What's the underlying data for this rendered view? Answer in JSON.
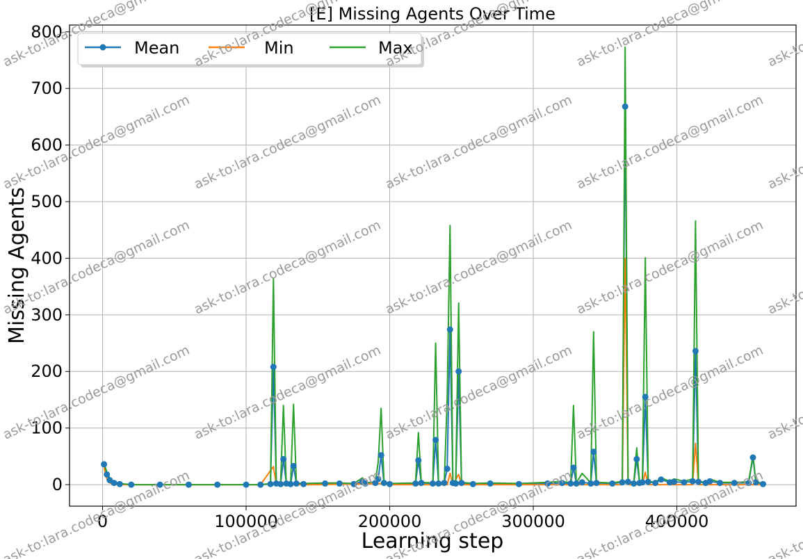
{
  "chart_data": {
    "type": "line",
    "title": "[E] Missing Agents Over Time",
    "xlabel": "Learning step",
    "ylabel": "Missing Agents",
    "xlim": [
      -23000,
      483000
    ],
    "ylim": [
      -38,
      812
    ],
    "xticks": [
      0,
      100000,
      200000,
      300000,
      400000
    ],
    "xtick_labels": [
      "0",
      "100000",
      "200000",
      "300000",
      "400000"
    ],
    "yticks": [
      0,
      100,
      200,
      300,
      400,
      500,
      600,
      700,
      800
    ],
    "ytick_labels": [
      "0",
      "100",
      "200",
      "300",
      "400",
      "500",
      "600",
      "700",
      "800"
    ],
    "grid": true,
    "legend_placement": "top-left",
    "legend_ncol": 3,
    "series": [
      {
        "name": "Mean",
        "color": "#1f77b4",
        "marker": "circle",
        "points": [
          [
            1000,
            36
          ],
          [
            3000,
            18
          ],
          [
            5000,
            8
          ],
          [
            8000,
            3
          ],
          [
            12000,
            1
          ],
          [
            20000,
            0
          ],
          [
            40000,
            0
          ],
          [
            60000,
            0
          ],
          [
            80000,
            0
          ],
          [
            100000,
            0
          ],
          [
            110000,
            0
          ],
          [
            117000,
            1
          ],
          [
            119000,
            208
          ],
          [
            121000,
            2
          ],
          [
            124000,
            1
          ],
          [
            126000,
            45
          ],
          [
            128000,
            2
          ],
          [
            131000,
            1
          ],
          [
            133000,
            33
          ],
          [
            135000,
            2
          ],
          [
            140000,
            1
          ],
          [
            155000,
            2
          ],
          [
            165000,
            2
          ],
          [
            175000,
            1
          ],
          [
            181000,
            5
          ],
          [
            183000,
            2
          ],
          [
            190000,
            3
          ],
          [
            192000,
            10
          ],
          [
            194000,
            52
          ],
          [
            196000,
            3
          ],
          [
            200000,
            1
          ],
          [
            218000,
            2
          ],
          [
            220000,
            43
          ],
          [
            222000,
            3
          ],
          [
            230000,
            2
          ],
          [
            232000,
            79
          ],
          [
            234000,
            2
          ],
          [
            238000,
            3
          ],
          [
            240000,
            28
          ],
          [
            242000,
            274
          ],
          [
            244000,
            3
          ],
          [
            246000,
            2
          ],
          [
            248000,
            200
          ],
          [
            250000,
            3
          ],
          [
            258000,
            1
          ],
          [
            270000,
            2
          ],
          [
            290000,
            1
          ],
          [
            310000,
            2
          ],
          [
            320000,
            3
          ],
          [
            326000,
            2
          ],
          [
            328000,
            30
          ],
          [
            330000,
            2
          ],
          [
            334000,
            4
          ],
          [
            340000,
            2
          ],
          [
            342000,
            58
          ],
          [
            344000,
            3
          ],
          [
            355000,
            2
          ],
          [
            362000,
            4
          ],
          [
            364000,
            668
          ],
          [
            366000,
            5
          ],
          [
            370000,
            2
          ],
          [
            372000,
            45
          ],
          [
            374000,
            3
          ],
          [
            376000,
            4
          ],
          [
            378000,
            155
          ],
          [
            380000,
            5
          ],
          [
            385000,
            3
          ],
          [
            389000,
            9
          ],
          [
            395000,
            4
          ],
          [
            398000,
            5
          ],
          [
            405000,
            4
          ],
          [
            411000,
            6
          ],
          [
            413000,
            236
          ],
          [
            415000,
            5
          ],
          [
            420000,
            3
          ],
          [
            423000,
            6
          ],
          [
            430000,
            3
          ],
          [
            440000,
            3
          ],
          [
            450000,
            3
          ],
          [
            453000,
            48
          ],
          [
            455000,
            4
          ],
          [
            460000,
            1
          ]
        ]
      },
      {
        "name": "Min",
        "color": "#ff7f0e",
        "marker": "none",
        "points": [
          [
            1000,
            30
          ],
          [
            3000,
            10
          ],
          [
            5000,
            3
          ],
          [
            10000,
            0
          ],
          [
            40000,
            0
          ],
          [
            80000,
            0
          ],
          [
            110000,
            0
          ],
          [
            119000,
            32
          ],
          [
            121000,
            0
          ],
          [
            126000,
            0
          ],
          [
            133000,
            0
          ],
          [
            150000,
            0
          ],
          [
            194000,
            2
          ],
          [
            200000,
            0
          ],
          [
            220000,
            0
          ],
          [
            232000,
            0
          ],
          [
            240000,
            0
          ],
          [
            242000,
            20
          ],
          [
            244000,
            0
          ],
          [
            248000,
            18
          ],
          [
            250000,
            0
          ],
          [
            300000,
            0
          ],
          [
            342000,
            0
          ],
          [
            362000,
            0
          ],
          [
            364000,
            400
          ],
          [
            366000,
            0
          ],
          [
            376000,
            0
          ],
          [
            378000,
            22
          ],
          [
            380000,
            0
          ],
          [
            411000,
            0
          ],
          [
            413000,
            73
          ],
          [
            415000,
            0
          ],
          [
            440000,
            0
          ],
          [
            453000,
            0
          ],
          [
            460000,
            0
          ]
        ]
      },
      {
        "name": "Max",
        "color": "#2ca02c",
        "marker": "none",
        "points": [
          [
            1000,
            38
          ],
          [
            3000,
            22
          ],
          [
            5000,
            12
          ],
          [
            8000,
            5
          ],
          [
            12000,
            2
          ],
          [
            20000,
            0
          ],
          [
            40000,
            0
          ],
          [
            60000,
            0
          ],
          [
            80000,
            0
          ],
          [
            100000,
            0
          ],
          [
            110000,
            0
          ],
          [
            117000,
            2
          ],
          [
            119000,
            365
          ],
          [
            121000,
            3
          ],
          [
            124000,
            2
          ],
          [
            126000,
            140
          ],
          [
            128000,
            2
          ],
          [
            131000,
            2
          ],
          [
            133000,
            142
          ],
          [
            135000,
            3
          ],
          [
            140000,
            2
          ],
          [
            155000,
            3
          ],
          [
            165000,
            3
          ],
          [
            175000,
            2
          ],
          [
            181000,
            12
          ],
          [
            183000,
            3
          ],
          [
            190000,
            5
          ],
          [
            192000,
            40
          ],
          [
            194000,
            135
          ],
          [
            196000,
            5
          ],
          [
            200000,
            2
          ],
          [
            218000,
            3
          ],
          [
            220000,
            92
          ],
          [
            222000,
            4
          ],
          [
            230000,
            3
          ],
          [
            232000,
            250
          ],
          [
            234000,
            3
          ],
          [
            238000,
            4
          ],
          [
            240000,
            152
          ],
          [
            242000,
            458
          ],
          [
            244000,
            4
          ],
          [
            246000,
            3
          ],
          [
            248000,
            321
          ],
          [
            250000,
            4
          ],
          [
            258000,
            2
          ],
          [
            270000,
            3
          ],
          [
            290000,
            2
          ],
          [
            310000,
            4
          ],
          [
            320000,
            6
          ],
          [
            326000,
            3
          ],
          [
            328000,
            140
          ],
          [
            330000,
            3
          ],
          [
            334000,
            20
          ],
          [
            340000,
            3
          ],
          [
            342000,
            270
          ],
          [
            344000,
            4
          ],
          [
            355000,
            3
          ],
          [
            362000,
            6
          ],
          [
            364000,
            773
          ],
          [
            366000,
            6
          ],
          [
            370000,
            3
          ],
          [
            372000,
            65
          ],
          [
            374000,
            4
          ],
          [
            376000,
            6
          ],
          [
            378000,
            401
          ],
          [
            380000,
            6
          ],
          [
            385000,
            4
          ],
          [
            389000,
            12
          ],
          [
            395000,
            6
          ],
          [
            398000,
            10
          ],
          [
            405000,
            6
          ],
          [
            411000,
            10
          ],
          [
            413000,
            466
          ],
          [
            415000,
            6
          ],
          [
            420000,
            4
          ],
          [
            423000,
            10
          ],
          [
            430000,
            4
          ],
          [
            440000,
            4
          ],
          [
            450000,
            5
          ],
          [
            453000,
            52
          ],
          [
            455000,
            5
          ],
          [
            460000,
            2
          ]
        ]
      }
    ]
  },
  "watermark": {
    "text": "ask-to:lara.codeca@gmail.com",
    "color": "#9a9a9a"
  }
}
